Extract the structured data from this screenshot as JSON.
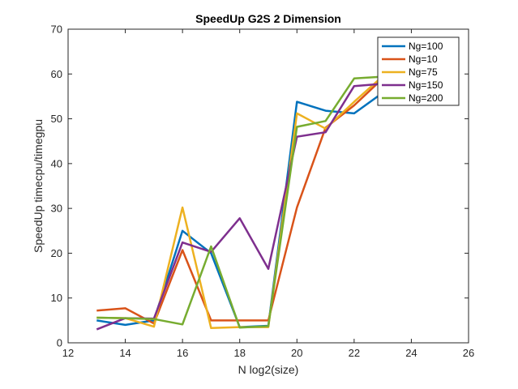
{
  "chart_data": {
    "type": "line",
    "title": "SpeedUp G2S 2 Dimension",
    "xlabel": "N log2(size)",
    "ylabel": "SpeedUp timecpu/timegpu",
    "xlim": [
      12,
      26
    ],
    "ylim": [
      0,
      70
    ],
    "xticks": [
      12,
      14,
      16,
      18,
      20,
      22,
      24,
      26
    ],
    "yticks": [
      0,
      10,
      20,
      30,
      40,
      50,
      60,
      70
    ],
    "grid": false,
    "legend_position": "top-right",
    "x": [
      13,
      14,
      15,
      16,
      17,
      18,
      19,
      20,
      21,
      22,
      23
    ],
    "series": [
      {
        "name": "Ng=100",
        "color": "#0072BD",
        "values": [
          5.0,
          4.0,
          5.0,
          25.0,
          20.0,
          3.5,
          3.8,
          53.8,
          51.8,
          51.2,
          55.8
        ]
      },
      {
        "name": "Ng=10",
        "color": "#D95319",
        "values": [
          7.2,
          7.7,
          4.3,
          20.7,
          5.0,
          5.0,
          5.0,
          30.2,
          48.0,
          53.0,
          59.0
        ]
      },
      {
        "name": "Ng=75",
        "color": "#EDB120",
        "values": [
          5.6,
          5.5,
          3.6,
          30.2,
          3.3,
          3.5,
          3.5,
          51.2,
          47.8,
          53.8,
          59.5
        ]
      },
      {
        "name": "Ng=150",
        "color": "#7E2F8E",
        "values": [
          3.0,
          5.5,
          5.4,
          22.4,
          20.3,
          27.8,
          16.5,
          46.0,
          47.0,
          57.3,
          57.8
        ]
      },
      {
        "name": "Ng=200",
        "color": "#77AC30",
        "values": [
          5.6,
          5.5,
          5.3,
          4.1,
          21.5,
          3.4,
          3.7,
          48.2,
          49.5,
          59.0,
          59.4
        ]
      }
    ]
  }
}
